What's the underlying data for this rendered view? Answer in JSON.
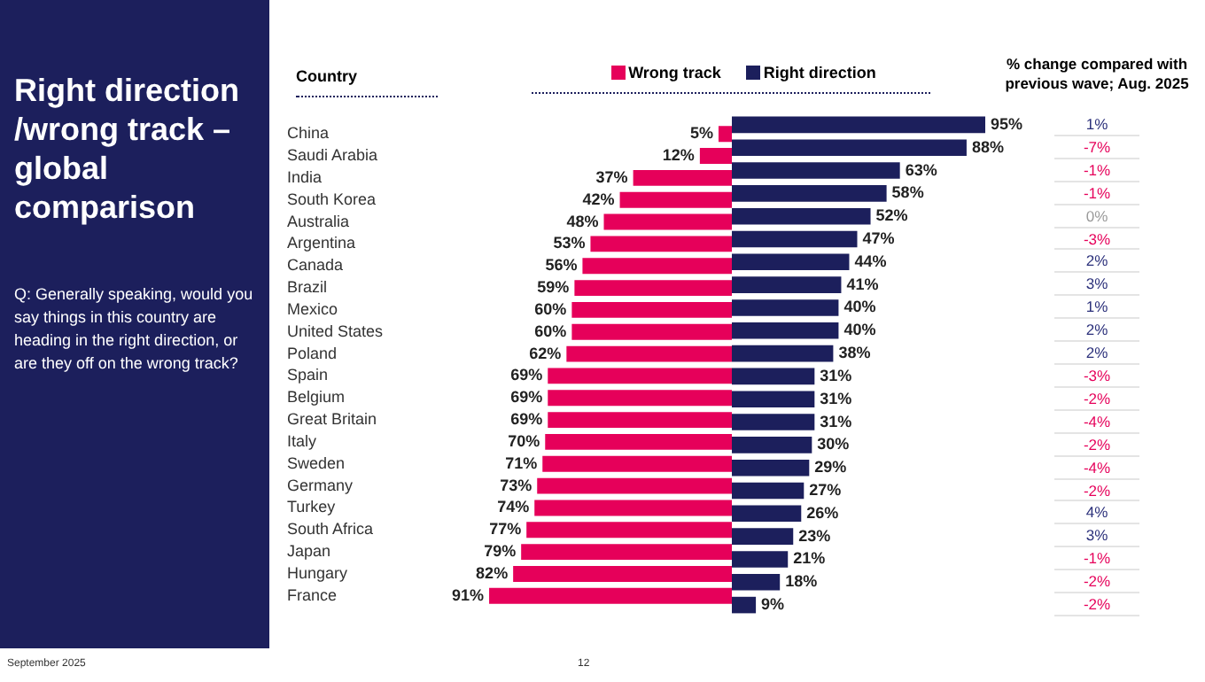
{
  "chart_data": [
    {
      "type": "bar",
      "orientation": "horizontal",
      "title": "Right direction /wrong track – global comparison",
      "subtitle": "Q: Generally speaking, would you say things in this country are heading in the right direction, or are they off on the wrong track?",
      "categories": [
        "China",
        "Saudi Arabia",
        "India",
        "South Korea",
        "Australia",
        "Argentina",
        "Canada",
        "Brazil",
        "Mexico",
        "United States",
        "Poland",
        "Spain",
        "Belgium",
        "Great Britain",
        "Italy",
        "Sweden",
        "Germany",
        "Turkey",
        "South Africa",
        "Japan",
        "Hungary",
        "France"
      ],
      "series": [
        {
          "name": "Wrong track",
          "color": "#e6005a",
          "values": [
            5,
            12,
            37,
            42,
            48,
            53,
            56,
            59,
            60,
            60,
            62,
            69,
            69,
            69,
            70,
            71,
            73,
            74,
            77,
            79,
            82,
            91
          ],
          "value_labels": [
            "5%",
            "12%",
            "37%",
            "42%",
            "48%",
            "53%",
            "56%",
            "59%",
            "60%",
            "60%",
            "62%",
            "69%",
            "69%",
            "69%",
            "70%",
            "71%",
            "73%",
            "74%",
            "77%",
            "79%",
            "82%",
            "91%"
          ]
        }
      ],
      "legend": "top",
      "annotations": [
        "Country",
        "September 2025",
        "12"
      ]
    },
    {
      "type": "bar",
      "orientation": "horizontal",
      "tick_labels": false,
      "categories": [
        null,
        null,
        null,
        null,
        null,
        null,
        null,
        null,
        null,
        null,
        null,
        null,
        null,
        null,
        null,
        null,
        null,
        null,
        null,
        null,
        null,
        null
      ],
      "series": [
        {
          "name": "Right direction",
          "color": "#1c1f5c",
          "values": [
            95,
            88,
            63,
            58,
            52,
            47,
            44,
            41,
            40,
            40,
            38,
            31,
            31,
            31,
            30,
            29,
            27,
            26,
            23,
            21,
            18,
            9
          ],
          "value_labels": [
            "95%",
            "88%",
            "63%",
            "58%",
            "52%",
            "47%",
            "44%",
            "41%",
            "40%",
            "40%",
            "38%",
            "31%",
            "31%",
            "31%",
            "30%",
            "29%",
            "27%",
            "26%",
            "23%",
            "21%",
            "18%",
            "9%"
          ]
        }
      ],
      "legend": "top"
    },
    {
      "type": "other",
      "title": "% change compared with previous wave; Aug. 2025",
      "annotations": [
        "1%",
        "-7%",
        "-1%",
        "-1%",
        "0%",
        "-3%",
        "2%",
        "3%",
        "1%",
        "2%",
        "2%",
        "-3%",
        "-2%",
        "-4%",
        "-2%",
        "-4%",
        "-2%",
        "4%",
        "3%",
        "-1%",
        "-2%",
        "-2%"
      ],
      "colors": [
        "#2a2f7a",
        "#e6005a",
        "#e6005a",
        "#e6005a",
        "#9a9a9a",
        "#e6005a",
        "#2a2f7a",
        "#2a2f7a",
        "#2a2f7a",
        "#2a2f7a",
        "#2a2f7a",
        "#e6005a",
        "#e6005a",
        "#e6005a",
        "#e6005a",
        "#e6005a",
        "#e6005a",
        "#2a2f7a",
        "#2a2f7a",
        "#e6005a",
        "#e6005a",
        "#e6005a"
      ]
    }
  ]
}
